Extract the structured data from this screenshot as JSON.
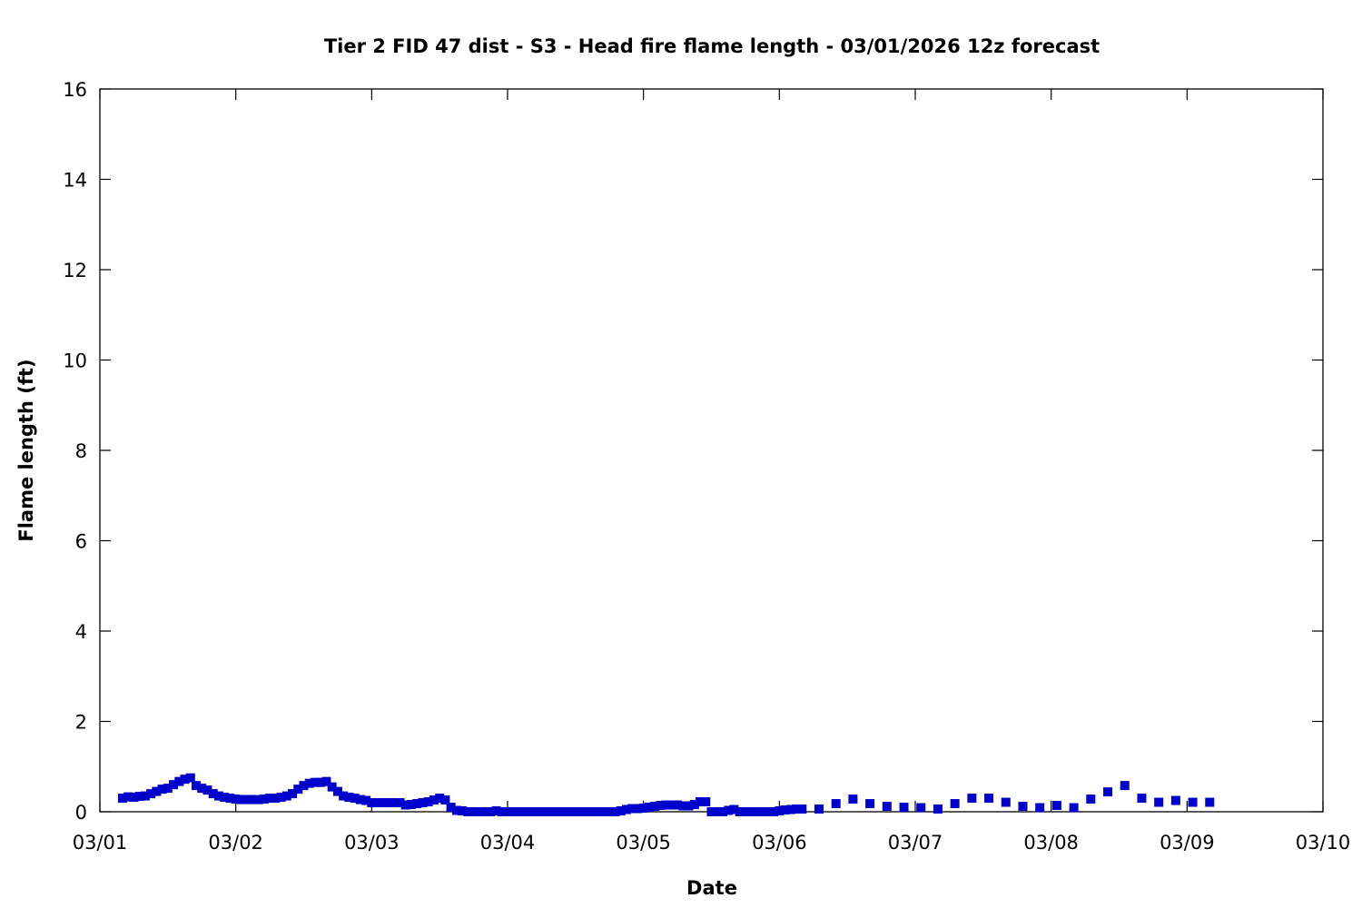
{
  "chart_data": {
    "type": "scatter",
    "title": "Tier 2 FID 47 dist - S3 - Head fire flame length - 03/01/2026 12z forecast",
    "xlabel": "Date",
    "ylabel": "Flame length (ft)",
    "xlim": [
      "03/01",
      "03/10"
    ],
    "ylim": [
      0,
      16
    ],
    "x_ticks": [
      "03/01",
      "03/02",
      "03/03",
      "03/04",
      "03/05",
      "03/06",
      "03/07",
      "03/08",
      "03/09",
      "03/10"
    ],
    "y_ticks": [
      "0",
      "2",
      "4",
      "6",
      "8",
      "10",
      "12",
      "14",
      "16"
    ],
    "grid": false,
    "legend": "none",
    "marker": "square",
    "color": "#0000cc",
    "points": [
      [
        "03/01 04",
        0.3
      ],
      [
        "03/01 05",
        0.33
      ],
      [
        "03/01 06",
        0.32
      ],
      [
        "03/01 07",
        0.34
      ],
      [
        "03/01 08",
        0.35
      ],
      [
        "03/01 09",
        0.4
      ],
      [
        "03/01 10",
        0.45
      ],
      [
        "03/01 11",
        0.5
      ],
      [
        "03/01 12",
        0.52
      ],
      [
        "03/01 13",
        0.6
      ],
      [
        "03/01 14",
        0.67
      ],
      [
        "03/01 15",
        0.72
      ],
      [
        "03/01 16",
        0.75
      ],
      [
        "03/01 17",
        0.58
      ],
      [
        "03/01 18",
        0.52
      ],
      [
        "03/01 19",
        0.48
      ],
      [
        "03/01 20",
        0.4
      ],
      [
        "03/01 21",
        0.35
      ],
      [
        "03/01 22",
        0.32
      ],
      [
        "03/01 23",
        0.3
      ],
      [
        "03/02 00",
        0.28
      ],
      [
        "03/02 01",
        0.27
      ],
      [
        "03/02 02",
        0.27
      ],
      [
        "03/02 03",
        0.27
      ],
      [
        "03/02 04",
        0.27
      ],
      [
        "03/02 05",
        0.28
      ],
      [
        "03/02 06",
        0.3
      ],
      [
        "03/02 07",
        0.3
      ],
      [
        "03/02 08",
        0.32
      ],
      [
        "03/02 09",
        0.35
      ],
      [
        "03/02 10",
        0.4
      ],
      [
        "03/02 11",
        0.5
      ],
      [
        "03/02 12",
        0.58
      ],
      [
        "03/02 13",
        0.63
      ],
      [
        "03/02 14",
        0.65
      ],
      [
        "03/02 15",
        0.65
      ],
      [
        "03/02 16",
        0.67
      ],
      [
        "03/02 17",
        0.55
      ],
      [
        "03/02 18",
        0.45
      ],
      [
        "03/02 19",
        0.35
      ],
      [
        "03/02 20",
        0.32
      ],
      [
        "03/02 21",
        0.3
      ],
      [
        "03/02 22",
        0.27
      ],
      [
        "03/02 23",
        0.25
      ],
      [
        "03/03 00",
        0.2
      ],
      [
        "03/03 01",
        0.2
      ],
      [
        "03/03 02",
        0.2
      ],
      [
        "03/03 03",
        0.2
      ],
      [
        "03/03 04",
        0.2
      ],
      [
        "03/03 05",
        0.2
      ],
      [
        "03/03 06",
        0.15
      ],
      [
        "03/03 07",
        0.16
      ],
      [
        "03/03 08",
        0.18
      ],
      [
        "03/03 09",
        0.2
      ],
      [
        "03/03 10",
        0.22
      ],
      [
        "03/03 11",
        0.26
      ],
      [
        "03/03 12",
        0.3
      ],
      [
        "03/03 13",
        0.26
      ],
      [
        "03/03 14",
        0.1
      ],
      [
        "03/03 15",
        0.03
      ],
      [
        "03/03 16",
        0.02
      ],
      [
        "03/03 17",
        0
      ],
      [
        "03/03 18",
        0
      ],
      [
        "03/03 19",
        0
      ],
      [
        "03/03 20",
        0
      ],
      [
        "03/03 21",
        0
      ],
      [
        "03/03 22",
        0.02
      ],
      [
        "03/03 23",
        0
      ],
      [
        "03/04 00",
        0
      ],
      [
        "03/04 01",
        0
      ],
      [
        "03/04 02",
        0
      ],
      [
        "03/04 03",
        0
      ],
      [
        "03/04 04",
        0
      ],
      [
        "03/04 05",
        0
      ],
      [
        "03/04 06",
        0
      ],
      [
        "03/04 07",
        0
      ],
      [
        "03/04 08",
        0
      ],
      [
        "03/04 09",
        0
      ],
      [
        "03/04 10",
        0
      ],
      [
        "03/04 11",
        0
      ],
      [
        "03/04 12",
        0
      ],
      [
        "03/04 13",
        0
      ],
      [
        "03/04 14",
        0
      ],
      [
        "03/04 15",
        0
      ],
      [
        "03/04 16",
        0
      ],
      [
        "03/04 17",
        0
      ],
      [
        "03/04 18",
        0
      ],
      [
        "03/04 19",
        0
      ],
      [
        "03/04 20",
        0.02
      ],
      [
        "03/04 21",
        0.05
      ],
      [
        "03/04 22",
        0.07
      ],
      [
        "03/04 23",
        0.07
      ],
      [
        "03/05 00",
        0.08
      ],
      [
        "03/05 01",
        0.1
      ],
      [
        "03/05 02",
        0.12
      ],
      [
        "03/05 03",
        0.14
      ],
      [
        "03/05 04",
        0.15
      ],
      [
        "03/05 05",
        0.15
      ],
      [
        "03/05 06",
        0.15
      ],
      [
        "03/05 07",
        0.13
      ],
      [
        "03/05 08",
        0.13
      ],
      [
        "03/05 09",
        0.16
      ],
      [
        "03/05 10",
        0.22
      ],
      [
        "03/05 11",
        0.22
      ],
      [
        "03/05 12",
        0
      ],
      [
        "03/05 13",
        0
      ],
      [
        "03/05 14",
        0
      ],
      [
        "03/05 15",
        0.03
      ],
      [
        "03/05 16",
        0.05
      ],
      [
        "03/05 17",
        0
      ],
      [
        "03/05 18",
        0
      ],
      [
        "03/05 19",
        0
      ],
      [
        "03/05 20",
        0
      ],
      [
        "03/05 21",
        0
      ],
      [
        "03/05 22",
        0
      ],
      [
        "03/05 23",
        0
      ],
      [
        "03/06 00",
        0.02
      ],
      [
        "03/06 01",
        0.04
      ],
      [
        "03/06 02",
        0.05
      ],
      [
        "03/06 03",
        0.06
      ],
      [
        "03/06 04",
        0.06
      ],
      [
        "03/06 07",
        0.06
      ],
      [
        "03/06 10",
        0.18
      ],
      [
        "03/06 13",
        0.28
      ],
      [
        "03/06 16",
        0.18
      ],
      [
        "03/06 19",
        0.12
      ],
      [
        "03/06 22",
        0.1
      ],
      [
        "03/07 01",
        0.09
      ],
      [
        "03/07 04",
        0.06
      ],
      [
        "03/07 07",
        0.18
      ],
      [
        "03/07 10",
        0.3
      ],
      [
        "03/07 13",
        0.3
      ],
      [
        "03/07 16",
        0.21
      ],
      [
        "03/07 19",
        0.12
      ],
      [
        "03/07 22",
        0.09
      ],
      [
        "03/08 01",
        0.14
      ],
      [
        "03/08 04",
        0.09
      ],
      [
        "03/08 07",
        0.28
      ],
      [
        "03/08 10",
        0.44
      ],
      [
        "03/08 13",
        0.58
      ],
      [
        "03/08 16",
        0.3
      ],
      [
        "03/08 19",
        0.21
      ],
      [
        "03/08 22",
        0.25
      ],
      [
        "03/09 01",
        0.21
      ],
      [
        "03/09 04",
        0.21
      ]
    ]
  }
}
